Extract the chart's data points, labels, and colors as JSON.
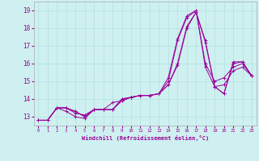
{
  "xlabel": "Windchill (Refroidissement éolien,°C)",
  "ylabel": "",
  "background_color": "#cff0f0",
  "line_color": "#990099",
  "xlim": [
    -0.5,
    23.5
  ],
  "ylim": [
    12.5,
    19.5
  ],
  "yticks": [
    13,
    14,
    15,
    16,
    17,
    18,
    19
  ],
  "xticks": [
    0,
    1,
    2,
    3,
    4,
    5,
    6,
    7,
    8,
    9,
    10,
    11,
    12,
    13,
    14,
    15,
    16,
    17,
    18,
    19,
    20,
    21,
    22,
    23
  ],
  "series": [
    [
      12.8,
      12.8,
      13.5,
      13.5,
      13.3,
      13.0,
      13.4,
      13.4,
      13.4,
      14.0,
      14.1,
      14.2,
      14.2,
      14.3,
      14.8,
      16.0,
      18.1,
      18.9,
      17.3,
      14.7,
      14.3,
      16.1,
      16.1,
      15.3
    ],
    [
      12.8,
      12.8,
      13.5,
      13.3,
      13.0,
      12.9,
      13.4,
      13.4,
      13.8,
      13.9,
      14.1,
      14.2,
      14.2,
      14.3,
      15.0,
      17.3,
      18.6,
      19.0,
      15.8,
      14.7,
      14.8,
      15.6,
      15.8,
      15.3
    ],
    [
      12.8,
      12.8,
      13.5,
      13.5,
      13.2,
      13.1,
      13.4,
      13.4,
      13.4,
      14.0,
      14.1,
      14.2,
      14.2,
      14.3,
      15.2,
      17.4,
      18.7,
      19.0,
      16.0,
      15.0,
      15.2,
      15.8,
      16.0,
      15.3
    ],
    [
      12.8,
      12.8,
      13.5,
      13.5,
      13.3,
      13.0,
      13.4,
      13.4,
      13.4,
      13.9,
      14.1,
      14.2,
      14.2,
      14.3,
      14.8,
      15.9,
      18.0,
      18.9,
      17.2,
      14.7,
      14.3,
      16.0,
      16.1,
      15.3
    ]
  ]
}
